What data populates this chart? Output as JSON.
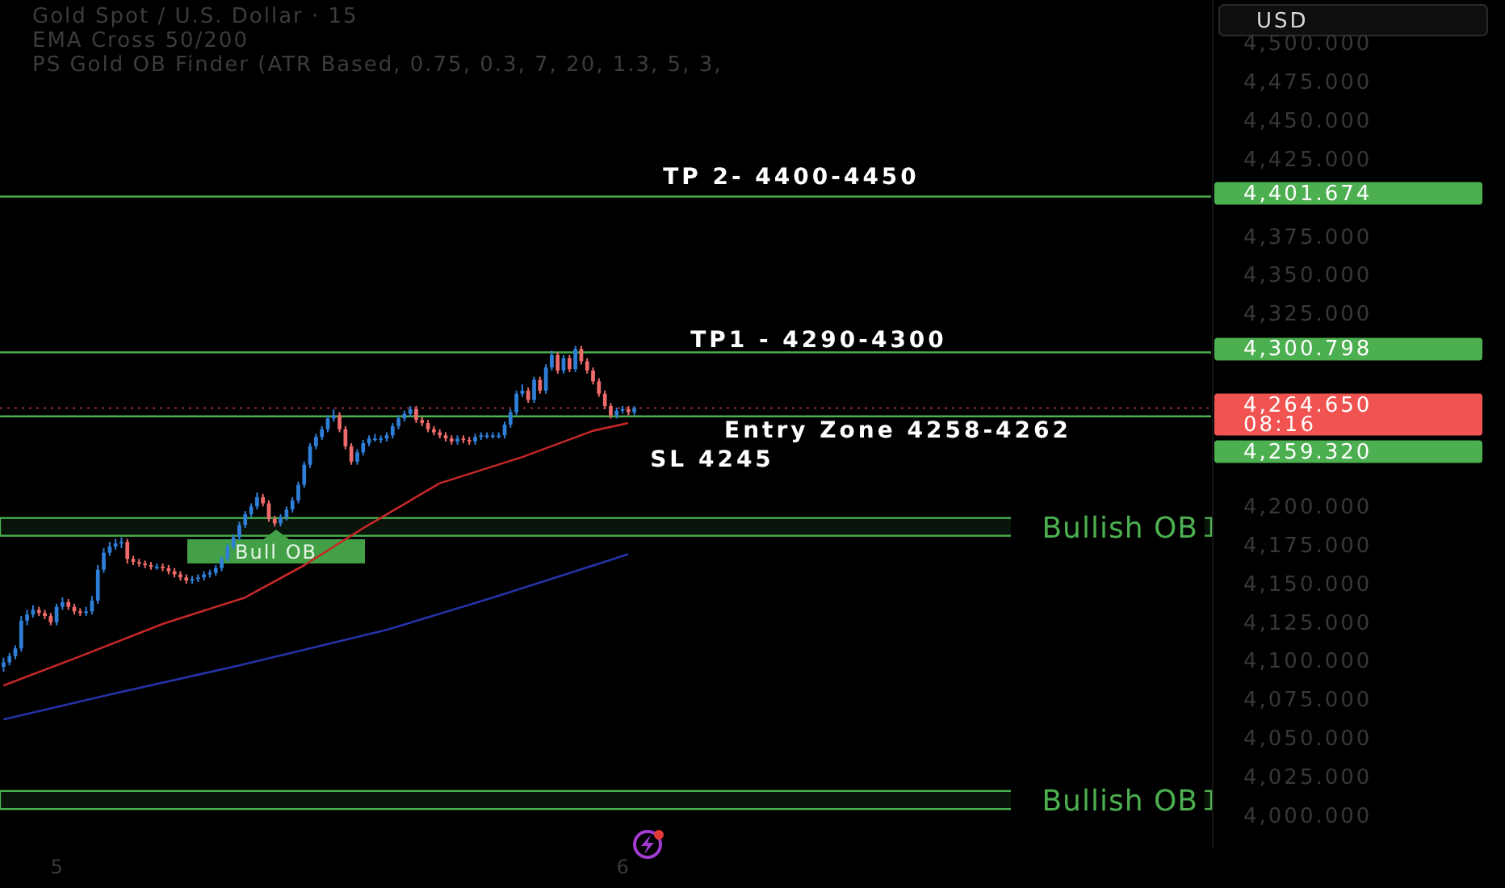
{
  "chart_data": {
    "type": "candlestick",
    "title": "Gold Spot / U.S. Dollar · 15",
    "subtitle": "EMA Cross 50/200",
    "annotations": [
      "PS Gold OB Finder (ATR Based, 0.75, 0.3, 7, 20, 1.3, 5, 3,",
      "USD",
      "TP 2- 4400-4450",
      "TP1 - 4290-4300",
      "Entry Zone 4258-4262",
      "SL 4245",
      "Bull OB"
    ],
    "xlim": [
      4.9,
      7.04
    ],
    "ylim": [
      3980,
      4529
    ],
    "xticks": [
      5,
      6
    ],
    "yticks": [
      {
        "value": 4000,
        "label": "4,000.000"
      },
      {
        "value": 4025,
        "label": "4,025.000"
      },
      {
        "value": 4050,
        "label": "4,050.000"
      },
      {
        "value": 4075,
        "label": "4,075.000"
      },
      {
        "value": 4100,
        "label": "4,100.000"
      },
      {
        "value": 4125,
        "label": "4,125.000"
      },
      {
        "value": 4150,
        "label": "4,150.000"
      },
      {
        "value": 4175,
        "label": "4,175.000"
      },
      {
        "value": 4200,
        "label": "4,200.000"
      },
      {
        "value": 4325,
        "label": "4,325.000"
      },
      {
        "value": 4350,
        "label": "4,350.000"
      },
      {
        "value": 4375,
        "label": "4,375.000"
      },
      {
        "value": 4425,
        "label": "4,425.000"
      },
      {
        "value": 4450,
        "label": "4,450.000"
      },
      {
        "value": 4475,
        "label": "4,475.000"
      },
      {
        "value": 4500,
        "label": "4,500.000"
      }
    ],
    "colors": [
      "#2f7fd8",
      "#2f7fd8",
      "#2f7fd8",
      "#2f7fd8",
      "#2f7fd8",
      "#2f7fd8",
      "#ef6b6b",
      "#ef6b6b",
      "#ef6b6b",
      "#2f7fd8",
      "#2f7fd8",
      "#ef6b6b",
      "#ef6b6b",
      "#ef6b6b",
      "#2f7fd8",
      "#2f7fd8",
      "#2f7fd8",
      "#2f7fd8",
      "#2f7fd8",
      "#2f7fd8",
      "#2f7fd8",
      "#ef6b6b",
      "#ef6b6b",
      "#ef6b6b",
      "#ef6b6b",
      "#ef6b6b",
      "#2f7fd8",
      "#ef6b6b",
      "#ef6b6b",
      "#ef6b6b",
      "#ef6b6b",
      "#ef6b6b",
      "#2f7fd8",
      "#2f7fd8",
      "#2f7fd8",
      "#2f7fd8",
      "#2f7fd8",
      "#2f7fd8",
      "#2f7fd8",
      "#2f7fd8",
      "#2f7fd8",
      "#2f7fd8",
      "#2f7fd8",
      "#2f7fd8",
      "#ef6b6b",
      "#ef6b6b",
      "#ef6b6b",
      "#2f7fd8",
      "#2f7fd8",
      "#2f7fd8",
      "#2f7fd8",
      "#2f7fd8",
      "#2f7fd8",
      "#2f7fd8",
      "#2f7fd8",
      "#2f7fd8",
      "#2f7fd8",
      "#ef6b6b",
      "#ef6b6b",
      "#ef6b6b",
      "#2f7fd8",
      "#2f7fd8",
      "#2f7fd8",
      "#2f7fd8",
      "#2f7fd8",
      "#2f7fd8",
      "#2f7fd8",
      "#2f7fd8",
      "#2f7fd8",
      "#2f7fd8",
      "#ef6b6b",
      "#ef6b6b",
      "#ef6b6b",
      "#ef6b6b",
      "#ef6b6b",
      "#ef6b6b",
      "#ef6b6b",
      "#2f7fd8",
      "#ef6b6b",
      "#ef6b6b",
      "#2f7fd8",
      "#2f7fd8",
      "#2f7fd8",
      "#2f7fd8",
      "#2f7fd8",
      "#2f7fd8",
      "#2f7fd8",
      "#2f7fd8",
      "#2f7fd8",
      "#ef6b6b",
      "#2f7fd8",
      "#ef6b6b",
      "#2f7fd8",
      "#2f7fd8",
      "#ef6b6b",
      "#2f7fd8",
      "#ef6b6b",
      "#2f7fd8",
      "#ef6b6b",
      "#ef6b6b",
      "#ef6b6b",
      "#ef6b6b",
      "#ef6b6b",
      "#ef6b6b",
      "#2f7fd8",
      "#2f7fd8",
      "#ef6b6b",
      "#2f7fd8"
    ],
    "x": [
      4.9063,
      4.9167,
      4.9271,
      4.9375,
      4.9479,
      4.9583,
      4.9688,
      4.9792,
      4.9896,
      5,
      5.0104,
      5.0208,
      5.0313,
      5.0417,
      5.0521,
      5.0625,
      5.0729,
      5.0833,
      5.0938,
      5.1042,
      5.1146,
      5.125,
      5.1354,
      5.1458,
      5.1563,
      5.1667,
      5.1771,
      5.1875,
      5.1979,
      5.2083,
      5.2188,
      5.2292,
      5.2396,
      5.25,
      5.2604,
      5.2708,
      5.2813,
      5.2917,
      5.3021,
      5.3125,
      5.3229,
      5.3333,
      5.3438,
      5.3542,
      5.3646,
      5.375,
      5.3854,
      5.3958,
      5.4063,
      5.4167,
      5.4271,
      5.4375,
      5.4479,
      5.4583,
      5.4688,
      5.4792,
      5.4896,
      5.5,
      5.5104,
      5.5208,
      5.5313,
      5.5417,
      5.5521,
      5.5625,
      5.5729,
      5.5833,
      5.5938,
      5.6042,
      5.6146,
      5.625,
      5.6354,
      5.6458,
      5.6563,
      5.6667,
      5.6771,
      5.6875,
      5.6979,
      5.7083,
      5.7188,
      5.7292,
      5.7396,
      5.75,
      5.7604,
      5.7708,
      5.7813,
      5.7917,
      5.8021,
      5.8125,
      5.8229,
      5.8333,
      5.8438,
      5.8542,
      5.8646,
      5.875,
      5.8854,
      5.8958,
      5.9063,
      5.9167,
      5.9271,
      5.9375,
      5.9479,
      5.9583,
      5.9688,
      5.9792,
      5.9896,
      6,
      6.0104,
      6.0208
    ],
    "ohlc": [
      [
        4097,
        4103,
        4094,
        4100
      ],
      [
        4100,
        4106,
        4098,
        4104
      ],
      [
        4104,
        4111,
        4102,
        4109
      ],
      [
        4109,
        4130,
        4107,
        4127
      ],
      [
        4127,
        4134,
        4124,
        4131
      ],
      [
        4131,
        4137,
        4129,
        4134
      ],
      [
        4134,
        4136,
        4130,
        4132
      ],
      [
        4132,
        4134,
        4128,
        4130
      ],
      [
        4130,
        4132,
        4124,
        4126
      ],
      [
        4126,
        4138,
        4124,
        4136
      ],
      [
        4136,
        4142,
        4134,
        4139
      ],
      [
        4139,
        4141,
        4134,
        4136
      ],
      [
        4136,
        4138,
        4131,
        4133
      ],
      [
        4133,
        4135,
        4130,
        4132
      ],
      [
        4132,
        4136,
        4130,
        4133
      ],
      [
        4133,
        4143,
        4131,
        4140
      ],
      [
        4140,
        4163,
        4138,
        4160
      ],
      [
        4160,
        4174,
        4158,
        4171
      ],
      [
        4171,
        4178,
        4169,
        4175
      ],
      [
        4175,
        4180,
        4173,
        4177
      ],
      [
        4177,
        4181,
        4174,
        4178
      ],
      [
        4178,
        4180,
        4164,
        4167
      ],
      [
        4167,
        4169,
        4163,
        4165
      ],
      [
        4165,
        4167,
        4162,
        4164
      ],
      [
        4164,
        4166,
        4161,
        4163
      ],
      [
        4163,
        4165,
        4160,
        4162
      ],
      [
        4162,
        4164,
        4160,
        4162
      ],
      [
        4162,
        4164,
        4159,
        4161
      ],
      [
        4161,
        4163,
        4157,
        4159
      ],
      [
        4159,
        4161,
        4155,
        4157
      ],
      [
        4157,
        4159,
        4153,
        4155
      ],
      [
        4155,
        4157,
        4151,
        4153
      ],
      [
        4153,
        4156,
        4151,
        4154
      ],
      [
        4154,
        4157,
        4152,
        4155
      ],
      [
        4155,
        4159,
        4153,
        4157
      ],
      [
        4157,
        4160,
        4155,
        4158
      ],
      [
        4158,
        4163,
        4156,
        4161
      ],
      [
        4161,
        4169,
        4159,
        4167
      ],
      [
        4167,
        4177,
        4165,
        4175
      ],
      [
        4175,
        4183,
        4173,
        4181
      ],
      [
        4181,
        4191,
        4179,
        4189
      ],
      [
        4189,
        4198,
        4187,
        4196
      ],
      [
        4196,
        4203,
        4194,
        4201
      ],
      [
        4201,
        4210,
        4199,
        4207
      ],
      [
        4207,
        4209,
        4201,
        4203
      ],
      [
        4203,
        4205,
        4191,
        4193
      ],
      [
        4193,
        4195,
        4188,
        4190
      ],
      [
        4190,
        4196,
        4188,
        4194
      ],
      [
        4194,
        4201,
        4192,
        4199
      ],
      [
        4199,
        4207,
        4197,
        4205
      ],
      [
        4205,
        4217,
        4203,
        4215
      ],
      [
        4215,
        4230,
        4213,
        4228
      ],
      [
        4228,
        4242,
        4226,
        4240
      ],
      [
        4240,
        4248,
        4238,
        4246
      ],
      [
        4246,
        4253,
        4244,
        4251
      ],
      [
        4251,
        4260,
        4249,
        4258
      ],
      [
        4258,
        4264,
        4256,
        4260
      ],
      [
        4260,
        4262,
        4249,
        4251
      ],
      [
        4251,
        4253,
        4238,
        4240
      ],
      [
        4240,
        4242,
        4228,
        4230
      ],
      [
        4230,
        4238,
        4228,
        4236
      ],
      [
        4236,
        4244,
        4234,
        4242
      ],
      [
        4242,
        4247,
        4240,
        4245
      ],
      [
        4245,
        4248,
        4243,
        4245
      ],
      [
        4245,
        4247,
        4242,
        4245
      ],
      [
        4245,
        4249,
        4243,
        4247
      ],
      [
        4247,
        4255,
        4245,
        4253
      ],
      [
        4253,
        4260,
        4251,
        4258
      ],
      [
        4258,
        4263,
        4256,
        4261
      ],
      [
        4261,
        4266,
        4259,
        4264
      ],
      [
        4264,
        4266,
        4255,
        4257
      ],
      [
        4257,
        4259,
        4253,
        4255
      ],
      [
        4255,
        4257,
        4249,
        4251
      ],
      [
        4251,
        4253,
        4247,
        4249
      ],
      [
        4249,
        4251,
        4245,
        4247
      ],
      [
        4247,
        4249,
        4243,
        4245
      ],
      [
        4245,
        4247,
        4241,
        4243
      ],
      [
        4243,
        4247,
        4241,
        4245
      ],
      [
        4245,
        4247,
        4242,
        4244
      ],
      [
        4244,
        4246,
        4241,
        4243
      ],
      [
        4243,
        4248,
        4241,
        4246
      ],
      [
        4246,
        4249,
        4244,
        4247
      ],
      [
        4247,
        4249,
        4245,
        4247
      ],
      [
        4247,
        4249,
        4245,
        4247
      ],
      [
        4247,
        4249,
        4245,
        4247
      ],
      [
        4247,
        4256,
        4245,
        4254
      ],
      [
        4254,
        4264,
        4252,
        4262
      ],
      [
        4262,
        4276,
        4260,
        4274
      ],
      [
        4274,
        4280,
        4272,
        4276
      ],
      [
        4276,
        4278,
        4268,
        4270
      ],
      [
        4270,
        4285,
        4268,
        4283
      ],
      [
        4283,
        4285,
        4274,
        4276
      ],
      [
        4276,
        4293,
        4274,
        4291
      ],
      [
        4291,
        4302,
        4289,
        4299
      ],
      [
        4299,
        4301,
        4287,
        4289
      ],
      [
        4289,
        4299,
        4287,
        4297
      ],
      [
        4297,
        4299,
        4288,
        4290
      ],
      [
        4290,
        4305,
        4288,
        4303
      ],
      [
        4303,
        4305,
        4293,
        4295
      ],
      [
        4295,
        4297,
        4287,
        4289
      ],
      [
        4289,
        4291,
        4280,
        4282
      ],
      [
        4282,
        4284,
        4272,
        4274
      ],
      [
        4274,
        4276,
        4264,
        4266
      ],
      [
        4266,
        4268,
        4258,
        4260
      ],
      [
        4260,
        4265,
        4258,
        4263
      ],
      [
        4263,
        4266,
        4261,
        4264
      ],
      [
        4264,
        4266,
        4260,
        4262
      ],
      [
        4262,
        4266,
        4260,
        4264.65
      ]
    ],
    "series": [
      {
        "type": "line",
        "color": "#c62828",
        "x": [
          4.906,
          5.042,
          5.188,
          5.333,
          5.438,
          5.542,
          5.677,
          5.823,
          5.948,
          6.01
        ],
        "values": [
          4085,
          4104,
          4125,
          4142,
          4163,
          4187,
          4216,
          4233,
          4250,
          4255
        ]
      },
      {
        "type": "line",
        "color": "#2632a8",
        "x": [
          4.906,
          5.104,
          5.323,
          5.583,
          5.771,
          6.01
        ],
        "values": [
          4063,
          4080,
          4098,
          4121,
          4142,
          4170
        ]
      }
    ],
    "ref_lines": [
      {
        "axis": "y",
        "value": 4401.674,
        "label": "4,401.674",
        "color": "#4caf50"
      },
      {
        "axis": "y",
        "value": 4300.798,
        "label": "4,300.798",
        "color": "#4caf50"
      },
      {
        "axis": "y",
        "value": 4264.65,
        "label": "4,264.650\n08:16",
        "color": "#f05350",
        "line_style": "dotted"
      },
      {
        "axis": "y",
        "value": 4259.32,
        "label": "4,259.320",
        "color": "#4caf50"
      }
    ],
    "bands": [
      {
        "axis": "y",
        "from": 4182,
        "to": 4193.5,
        "label": "Bullish OB",
        "color": "#4caf50"
      },
      {
        "axis": "y",
        "from": 4005,
        "to": 4016.7,
        "label": "Bullish OB",
        "color": "#4caf50"
      }
    ]
  }
}
